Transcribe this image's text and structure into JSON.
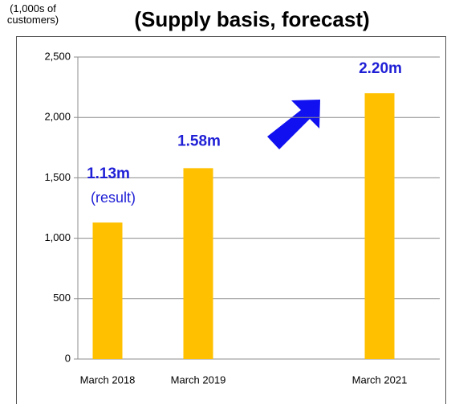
{
  "chart_data": {
    "type": "bar",
    "title": "(Supply basis, forecast)",
    "y_label": "(1,000s of customers)",
    "categories": [
      "March 2018",
      "March 2019",
      null,
      "March 2021"
    ],
    "values": [
      1130,
      1580,
      null,
      2200
    ],
    "value_labels": [
      "1.13m",
      "1.58m",
      null,
      "2.20m"
    ],
    "annotation": "(result)",
    "color": "#ffc000",
    "label_color": "#1f1fd6",
    "ylim": [
      0,
      2500
    ],
    "yticks": [
      0,
      500,
      {
        "value": 1000,
        "label": "1,000"
      },
      {
        "value": 1500,
        "label": "1,500"
      },
      {
        "value": 2000,
        "label": "2,000"
      },
      {
        "value": 2500,
        "label": "2,500"
      }
    ],
    "grid": true
  }
}
